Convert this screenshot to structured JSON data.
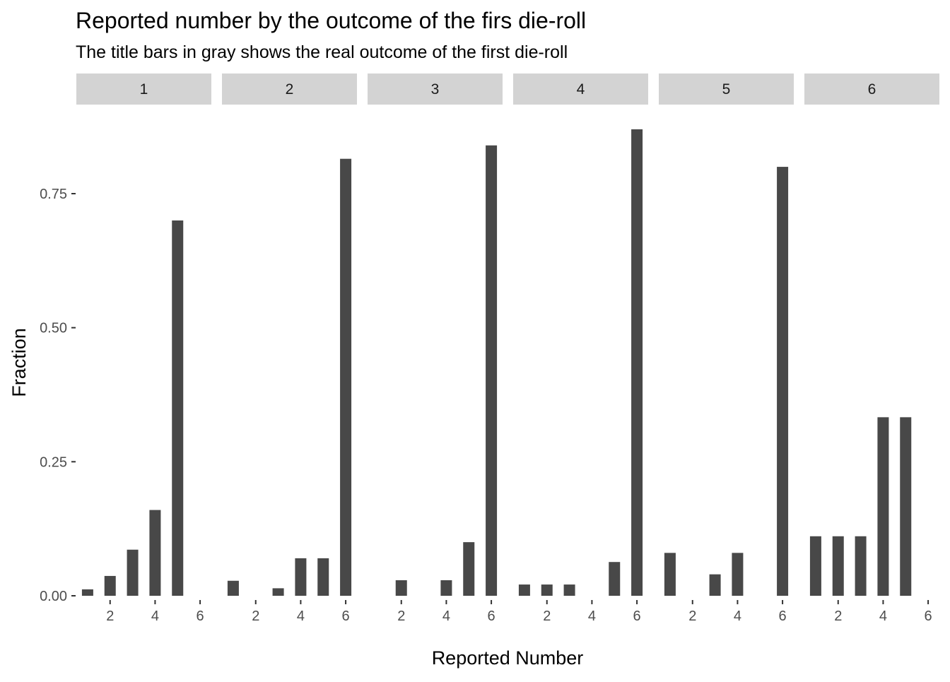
{
  "chart_data": {
    "type": "bar",
    "title": "Reported number by the outcome of the firs die-roll",
    "subtitle": "The title bars in gray shows the real outcome of the first die-roll",
    "xlabel": "Reported Number",
    "ylabel": "Fraction",
    "ylim": [
      0,
      0.88
    ],
    "y_ticks": [
      0,
      0.25,
      0.5,
      0.75
    ],
    "y_tick_labels": [
      "0.00",
      "0.25",
      "0.50",
      "0.75"
    ],
    "xlim": [
      0.5,
      6.5
    ],
    "x_ticks": [
      2,
      4,
      6
    ],
    "x_tick_labels": [
      "2",
      "4",
      "6"
    ],
    "grid": false,
    "bar_color": "#484848",
    "strip_color": "#d3d3d3",
    "categories": [
      1,
      2,
      3,
      4,
      5,
      6
    ],
    "facets": [
      {
        "label": "1",
        "values": [
          0.012,
          0.037,
          0.086,
          0.16,
          0.7,
          0
        ]
      },
      {
        "label": "2",
        "values": [
          0.028,
          0,
          0.014,
          0.07,
          0.07,
          0.815
        ]
      },
      {
        "label": "3",
        "values": [
          0,
          0.029,
          0,
          0.029,
          0.1,
          0.84
        ]
      },
      {
        "label": "4",
        "values": [
          0.021,
          0.021,
          0.021,
          0,
          0.063,
          0.87
        ]
      },
      {
        "label": "5",
        "values": [
          0.08,
          0,
          0.04,
          0.08,
          0,
          0.8
        ]
      },
      {
        "label": "6",
        "values": [
          0.111,
          0.111,
          0.111,
          0.333,
          0.333,
          0
        ]
      }
    ]
  }
}
